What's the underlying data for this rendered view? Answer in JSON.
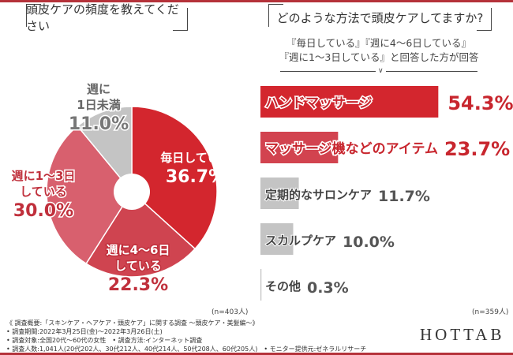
{
  "titles": {
    "left": "頭皮ケアの頻度を教えてください",
    "right": "どのような方法で頭皮ケアしてますか?"
  },
  "note": {
    "line1": "『毎日している』『週に4〜6日している』",
    "line2": "『週に1〜3日している』と回答した方が回答"
  },
  "chart_data": [
    {
      "type": "pie",
      "donut": true,
      "start": "12 o'clock, clockwise",
      "slices": [
        {
          "label_lines": [
            "毎日している"
          ],
          "value": 36.7,
          "display": "36.7%",
          "color": "#d3262e"
        },
        {
          "label_lines": [
            "週に4〜6日",
            "している"
          ],
          "value": 22.3,
          "display": "22.3%",
          "color": "#cf4450"
        },
        {
          "label_lines": [
            "週に1〜3日",
            "している"
          ],
          "value": 30.0,
          "display": "30.0%",
          "color": "#d8606e"
        },
        {
          "label_lines": [
            "週に",
            "1日未満"
          ],
          "value": 11.0,
          "display": "11.0%",
          "color": "#c4c4c4"
        }
      ],
      "sample": "(n=403人)"
    },
    {
      "type": "bar",
      "orientation": "horizontal",
      "categories": [
        "ハンドマッサージ",
        "マッサージ機などのアイテム",
        "定期的なサロンケア",
        "スカルプケア",
        "その他"
      ],
      "values": [
        54.3,
        23.7,
        11.7,
        10.0,
        0.3
      ],
      "display": [
        "54.3%",
        "23.7%",
        "11.7%",
        "10.0%",
        "0.3%"
      ],
      "colors": [
        "#d3262e",
        "#d2434f",
        "#c4c4c4",
        "#c4c4c4",
        "#c4c4c4"
      ],
      "sample": "(n=359人)"
    }
  ],
  "footer": [
    "《 調査概要:「スキンケア・ヘアケア・頭皮ケア」に関する調査 〜頭皮ケア・美髪編〜》",
    "• 調査期間:2022年3月25日(金)〜2022年3月26日(土)",
    "• 調査対象:全国20代〜60代の女性　• 調査方法:インターネット調査",
    "• 調査人数:1,041人(20代202人、30代212人、40代214人、50代208人、60代205人)　• モニター提供元:ゼネラルリサーチ"
  ],
  "logo": "HOTTAB"
}
